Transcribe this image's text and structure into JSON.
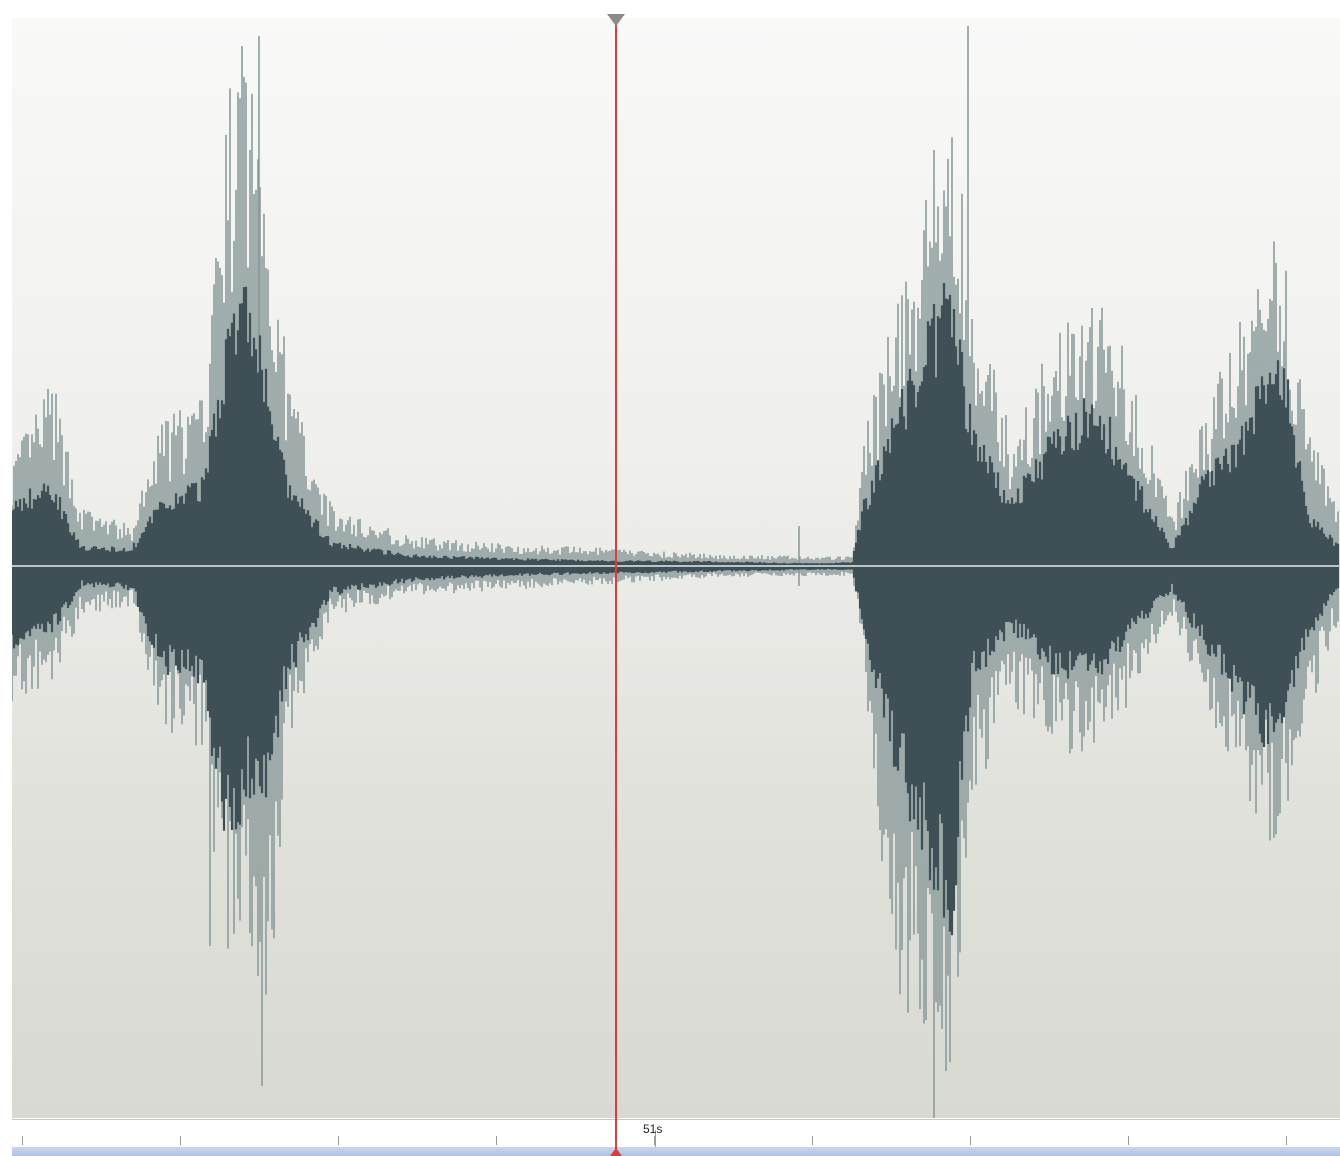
{
  "ruler": {
    "time_label": "51s"
  },
  "colors": {
    "waveform_fill": "#3e4f55",
    "waveform_peak": "#8c9c9c",
    "centerline": "#b8c6c8",
    "playhead": "#e03a3a",
    "ruler_bar": "#b8c8e6"
  },
  "icons": {
    "playhead_handle": "playhead-handle-icon",
    "playhead_foot": "playhead-marker-icon"
  }
}
